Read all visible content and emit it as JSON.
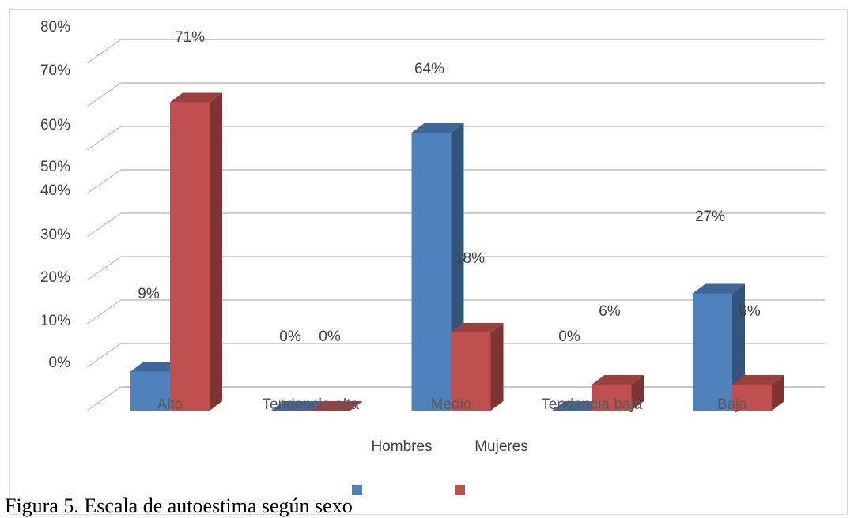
{
  "chart_data": {
    "type": "bar",
    "style": "3d-clustered-column",
    "categories": [
      "Alto",
      "Tendencia alta",
      "Medio",
      "Tendencia baja",
      "Baja"
    ],
    "series": [
      {
        "name": "Hombres",
        "values": [
          9,
          0,
          64,
          0,
          27
        ],
        "color": "#4f81bd"
      },
      {
        "name": "Mujeres",
        "values": [
          71,
          0,
          18,
          6,
          6
        ],
        "color": "#c0504d"
      }
    ],
    "data_labels": {
      "Hombres": [
        "9%",
        "0%",
        "64%",
        "0%",
        "27%"
      ],
      "Mujeres": [
        "71%",
        "0%",
        "18%",
        "6%",
        "6%"
      ]
    },
    "yticks": [
      "0%",
      "10%",
      "20%",
      "30%",
      "40%",
      "50%",
      "60%",
      "70%",
      "80%"
    ],
    "ylim": [
      0,
      80
    ],
    "grid": true,
    "legend": "bottom"
  },
  "caption": "Figura 5. Escala de autoestima según sexo"
}
